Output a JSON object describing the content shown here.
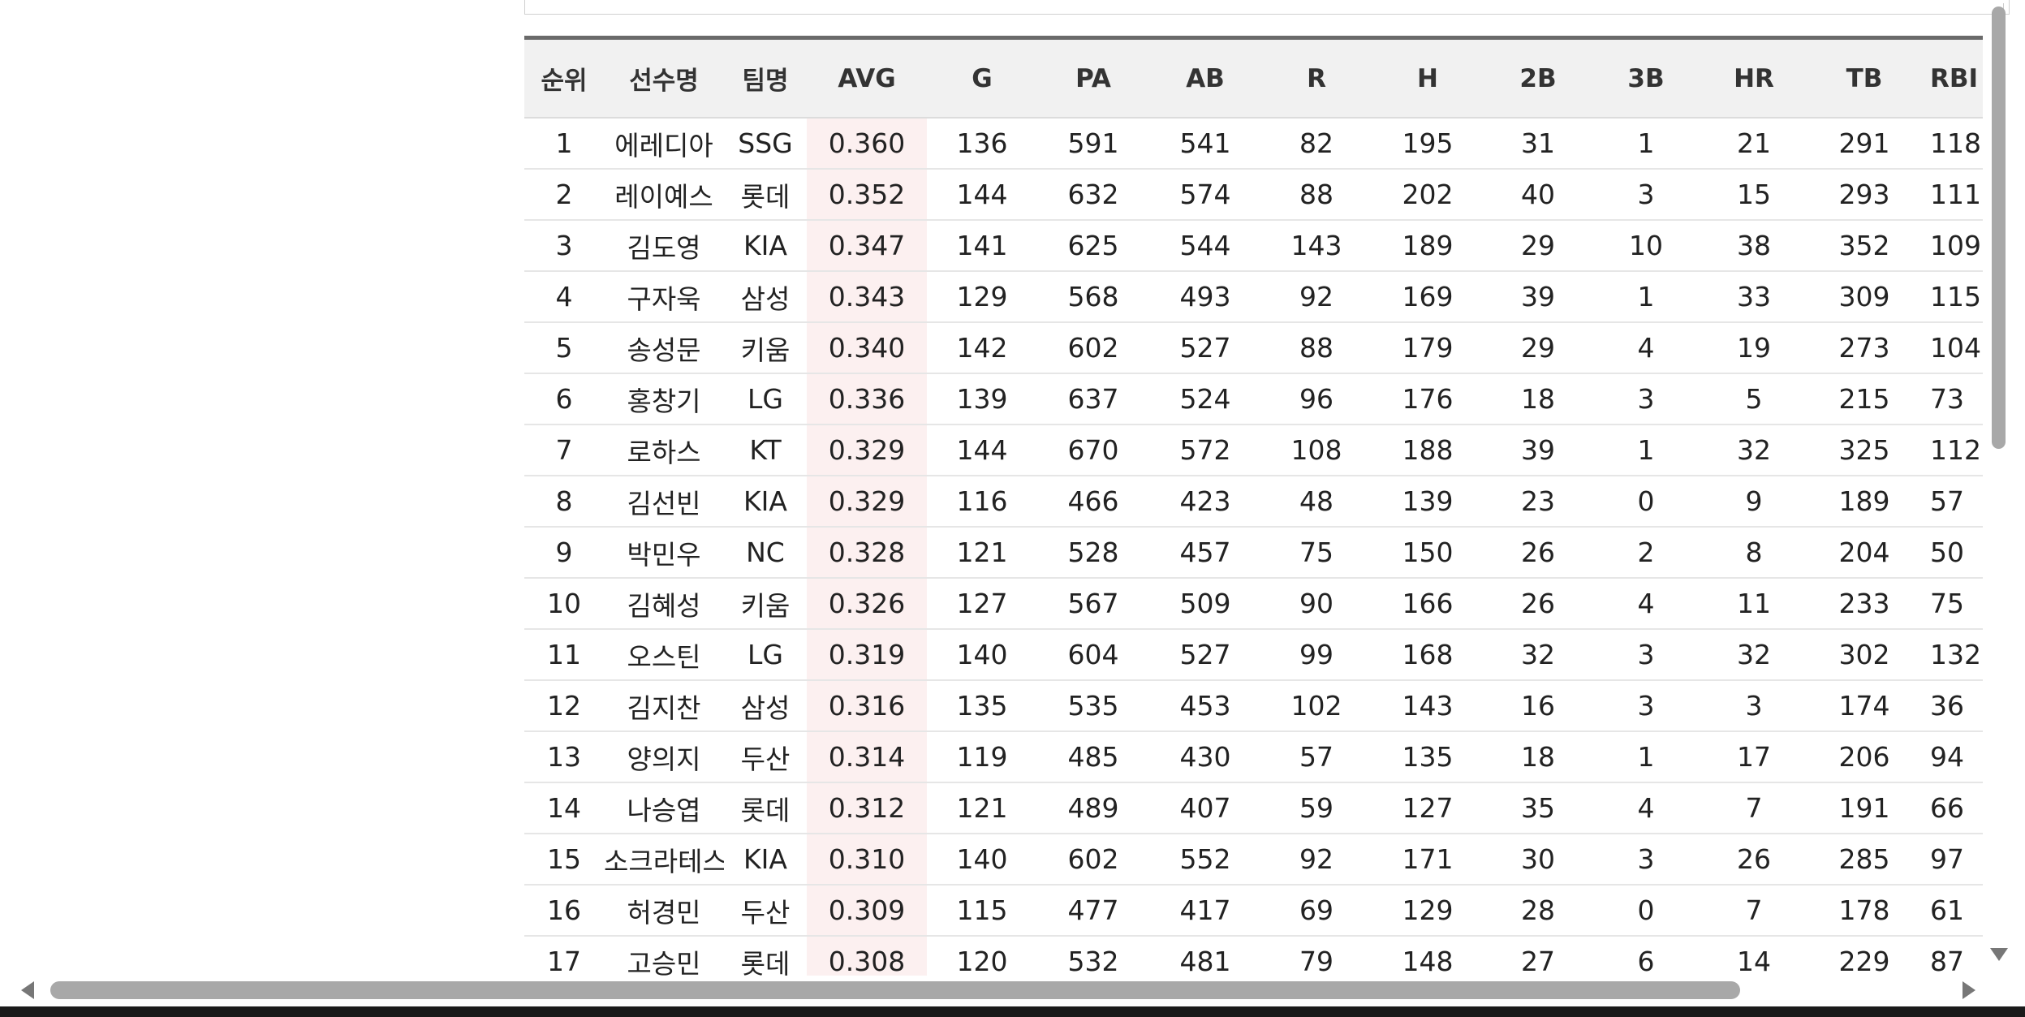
{
  "table": {
    "headers": [
      "순위",
      "선수명",
      "팀명",
      "AVG",
      "G",
      "PA",
      "AB",
      "R",
      "H",
      "2B",
      "3B",
      "HR",
      "TB",
      "RBI"
    ],
    "rows": [
      [
        "1",
        "에레디아",
        "SSG",
        "0.360",
        "136",
        "591",
        "541",
        "82",
        "195",
        "31",
        "1",
        "21",
        "291",
        "118"
      ],
      [
        "2",
        "레이예스",
        "롯데",
        "0.352",
        "144",
        "632",
        "574",
        "88",
        "202",
        "40",
        "3",
        "15",
        "293",
        "111"
      ],
      [
        "3",
        "김도영",
        "KIA",
        "0.347",
        "141",
        "625",
        "544",
        "143",
        "189",
        "29",
        "10",
        "38",
        "352",
        "109"
      ],
      [
        "4",
        "구자욱",
        "삼성",
        "0.343",
        "129",
        "568",
        "493",
        "92",
        "169",
        "39",
        "1",
        "33",
        "309",
        "115"
      ],
      [
        "5",
        "송성문",
        "키움",
        "0.340",
        "142",
        "602",
        "527",
        "88",
        "179",
        "29",
        "4",
        "19",
        "273",
        "104"
      ],
      [
        "6",
        "홍창기",
        "LG",
        "0.336",
        "139",
        "637",
        "524",
        "96",
        "176",
        "18",
        "3",
        "5",
        "215",
        "73"
      ],
      [
        "7",
        "로하스",
        "KT",
        "0.329",
        "144",
        "670",
        "572",
        "108",
        "188",
        "39",
        "1",
        "32",
        "325",
        "112"
      ],
      [
        "8",
        "김선빈",
        "KIA",
        "0.329",
        "116",
        "466",
        "423",
        "48",
        "139",
        "23",
        "0",
        "9",
        "189",
        "57"
      ],
      [
        "9",
        "박민우",
        "NC",
        "0.328",
        "121",
        "528",
        "457",
        "75",
        "150",
        "26",
        "2",
        "8",
        "204",
        "50"
      ],
      [
        "10",
        "김혜성",
        "키움",
        "0.326",
        "127",
        "567",
        "509",
        "90",
        "166",
        "26",
        "4",
        "11",
        "233",
        "75"
      ],
      [
        "11",
        "오스틴",
        "LG",
        "0.319",
        "140",
        "604",
        "527",
        "99",
        "168",
        "32",
        "3",
        "32",
        "302",
        "132"
      ],
      [
        "12",
        "김지찬",
        "삼성",
        "0.316",
        "135",
        "535",
        "453",
        "102",
        "143",
        "16",
        "3",
        "3",
        "174",
        "36"
      ],
      [
        "13",
        "양의지",
        "두산",
        "0.314",
        "119",
        "485",
        "430",
        "57",
        "135",
        "18",
        "1",
        "17",
        "206",
        "94"
      ],
      [
        "14",
        "나승엽",
        "롯데",
        "0.312",
        "121",
        "489",
        "407",
        "59",
        "127",
        "35",
        "4",
        "7",
        "191",
        "66"
      ],
      [
        "15",
        "소크라테스",
        "KIA",
        "0.310",
        "140",
        "602",
        "552",
        "92",
        "171",
        "30",
        "3",
        "26",
        "285",
        "97"
      ],
      [
        "16",
        "허경민",
        "두산",
        "0.309",
        "115",
        "477",
        "417",
        "69",
        "129",
        "28",
        "0",
        "7",
        "178",
        "61"
      ],
      [
        "17",
        "고승민",
        "롯데",
        "0.308",
        "120",
        "532",
        "481",
        "79",
        "148",
        "27",
        "6",
        "14",
        "229",
        "87"
      ]
    ]
  },
  "icons": {
    "scroll_left": "arrow-left-icon",
    "scroll_right": "arrow-right-icon",
    "scroll_down": "arrow-down-icon"
  }
}
